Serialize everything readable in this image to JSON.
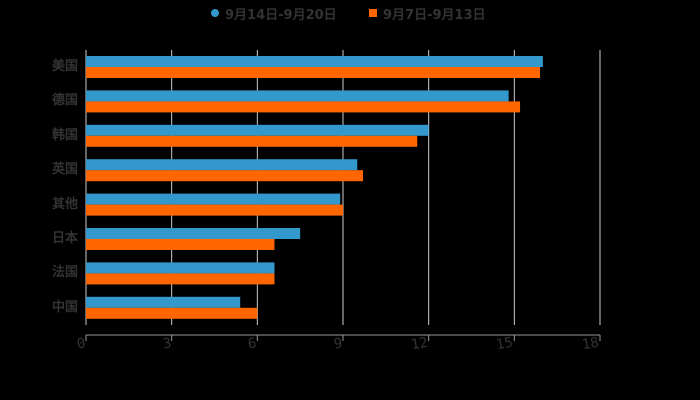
{
  "chart_data": {
    "type": "bar",
    "orientation": "horizontal",
    "title": "",
    "xlabel": "",
    "ylabel": "",
    "categories": [
      "美国",
      "德国",
      "韩国",
      "英国",
      "其他",
      "日本",
      "法国",
      "中国"
    ],
    "series": [
      {
        "name": "9月14日-9月20日",
        "color": "#3399CC",
        "marker": "circle",
        "values": [
          16.0,
          14.8,
          12.0,
          9.5,
          8.9,
          7.5,
          6.6,
          5.4
        ]
      },
      {
        "name": "9月7日-9月13日",
        "color": "#FF6600",
        "marker": "square",
        "values": [
          15.9,
          15.2,
          11.6,
          9.7,
          9.0,
          6.6,
          6.6,
          6.0
        ]
      }
    ],
    "xlim": [
      0,
      18
    ],
    "x_ticks": [
      "0",
      "3",
      "6",
      "9",
      "12",
      "15",
      "18"
    ],
    "grid": true,
    "legend_position": "top"
  },
  "colors": {
    "background": "#000000",
    "grid": "#CCCCCC",
    "text": "#333333"
  }
}
